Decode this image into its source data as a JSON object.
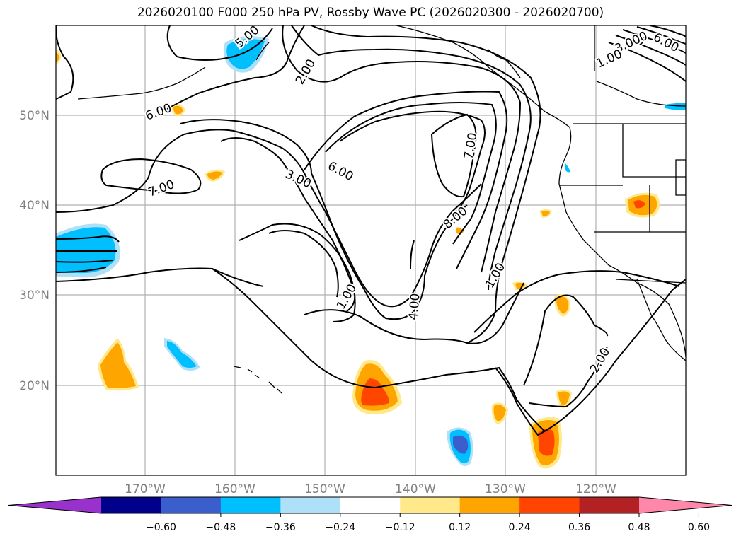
{
  "title": "2026020100 F000 250 hPa PV, Rossby Wave PC (2026020300 - 2026020700)",
  "colors": {
    "blue": "#00bfff",
    "light_blue": "#aee0f8",
    "mid_blue": "#3a5fcd",
    "yellow": "#ffe98a",
    "orange": "#ffa500",
    "red_orange": "#ff4500",
    "grid": "#b0b0b0",
    "axis_text": "#808080"
  },
  "lat_labels": [
    "50°N",
    "40°N",
    "30°N",
    "20°N"
  ],
  "lon_labels": [
    "170°W",
    "160°W",
    "150°W",
    "140°W",
    "130°W",
    "120°W"
  ],
  "contour_labels": [
    "2.00",
    "6.00",
    "7.00",
    "3.00",
    "6.00",
    "7.00",
    "8.00",
    "1.00",
    "1.00",
    "4.00",
    "2.00",
    "6.00",
    "5",
    "3.000",
    "1.00",
    "5.00"
  ],
  "colorbar": {
    "colors": [
      "#9932cc",
      "#00008b",
      "#3a5fcd",
      "#00bfff",
      "#aee0f8",
      "#ffffff",
      "#ffe98a",
      "#ffa500",
      "#ff4500",
      "#b22222",
      "#ff88aa"
    ],
    "ticks": [
      "−0.60",
      "−0.48",
      "−0.36",
      "−0.24",
      "−0.12",
      "0.12",
      "0.24",
      "0.36",
      "0.48",
      "0.60"
    ]
  }
}
